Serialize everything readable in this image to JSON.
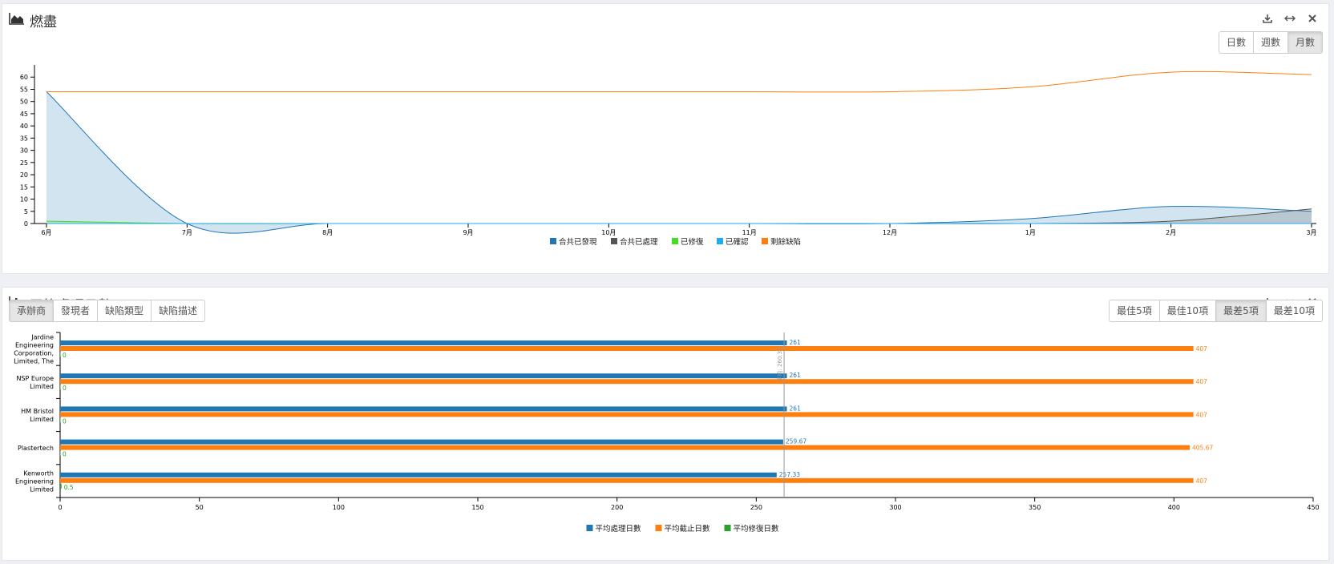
{
  "burndown": {
    "title": "燃盡",
    "range_buttons": [
      {
        "label": "日數",
        "active": false
      },
      {
        "label": "週數",
        "active": false
      },
      {
        "label": "月數",
        "active": true
      }
    ],
    "tools": [
      "download-icon",
      "expand-icon",
      "close-icon"
    ]
  },
  "avg": {
    "title": "平均處理日數",
    "group_buttons": [
      {
        "label": "承辦商",
        "active": true
      },
      {
        "label": "發現者",
        "active": false
      },
      {
        "label": "缺陷類型",
        "active": false
      },
      {
        "label": "缺陷描述",
        "active": false
      }
    ],
    "rank_buttons": [
      {
        "label": "最佳5項",
        "active": false
      },
      {
        "label": "最佳10項",
        "active": false
      },
      {
        "label": "最差5項",
        "active": true
      },
      {
        "label": "最差10項",
        "active": false
      }
    ],
    "tools": [
      "download-icon",
      "expand-icon",
      "close-icon"
    ]
  },
  "chart_data": [
    {
      "type": "area",
      "title": "燃盡",
      "x": [
        "6月",
        "7月",
        "8月",
        "9月",
        "10月",
        "11月",
        "12月",
        "1月",
        "2月",
        "3月"
      ],
      "ylim": [
        0,
        65
      ],
      "yticks": [
        0,
        5,
        10,
        15,
        20,
        25,
        30,
        35,
        40,
        45,
        50,
        55,
        60
      ],
      "legend_position": "bottom",
      "series": [
        {
          "name": "合共已發現",
          "color": "#1f77b4",
          "values": [
            54,
            0,
            0,
            0,
            0,
            0,
            0,
            2,
            7,
            5
          ]
        },
        {
          "name": "合共已處理",
          "color": "#555555",
          "values": [
            0,
            0,
            0,
            0,
            0,
            0,
            0,
            0,
            1,
            6
          ]
        },
        {
          "name": "已修復",
          "color": "#44dd22",
          "values": [
            1,
            0,
            0,
            0,
            0,
            0,
            0,
            0,
            0,
            0
          ]
        },
        {
          "name": "已確認",
          "color": "#22aaee",
          "values": [
            0,
            0,
            0,
            0,
            0,
            0,
            0,
            0,
            0,
            0
          ]
        },
        {
          "name": "剩餘缺陷",
          "color": "#ff7f0e",
          "values": [
            54,
            54,
            54,
            54,
            54,
            54,
            54,
            56,
            62,
            61
          ]
        }
      ]
    },
    {
      "type": "bar",
      "orientation": "horizontal",
      "title": "平均處理日數",
      "categories": [
        "Jardine Engineering Corporation, Limited, The",
        "NSP Europe Limited",
        "HM Bristol Limited",
        "Plastertech",
        "Kenworth Engineering Limited"
      ],
      "category_lines": [
        [
          "Jardine",
          "Engineering",
          "Corporation,",
          "Limited, The"
        ],
        [
          "NSP Europe",
          "Limited"
        ],
        [
          "HM Bristol",
          "Limited"
        ],
        [
          "Plastertech"
        ],
        [
          "Kenworth",
          "Engineering",
          "Limited"
        ]
      ],
      "xlim": [
        0,
        450
      ],
      "xticks": [
        0,
        50,
        100,
        150,
        200,
        250,
        300,
        350,
        400,
        450
      ],
      "reference_line": {
        "value": 260,
        "label": "平均: 260.34"
      },
      "legend_position": "bottom",
      "series": [
        {
          "name": "平均處理日數",
          "color": "#1f77b4",
          "values": [
            261,
            261,
            261,
            259.67,
            257.33
          ],
          "labels": [
            "261",
            "261",
            "261",
            "259.67",
            "257.33"
          ]
        },
        {
          "name": "平均截止日數",
          "color": "#ff7f0e",
          "values": [
            407,
            407,
            407,
            405.67,
            407
          ],
          "labels": [
            "407",
            "407",
            "407",
            "405.67",
            "407"
          ]
        },
        {
          "name": "平均修復日數",
          "color": "#2ca02c",
          "values": [
            0,
            0,
            0,
            0,
            0.5
          ],
          "labels": [
            "0",
            "0",
            "0",
            "0",
            "0.5"
          ]
        }
      ]
    }
  ]
}
